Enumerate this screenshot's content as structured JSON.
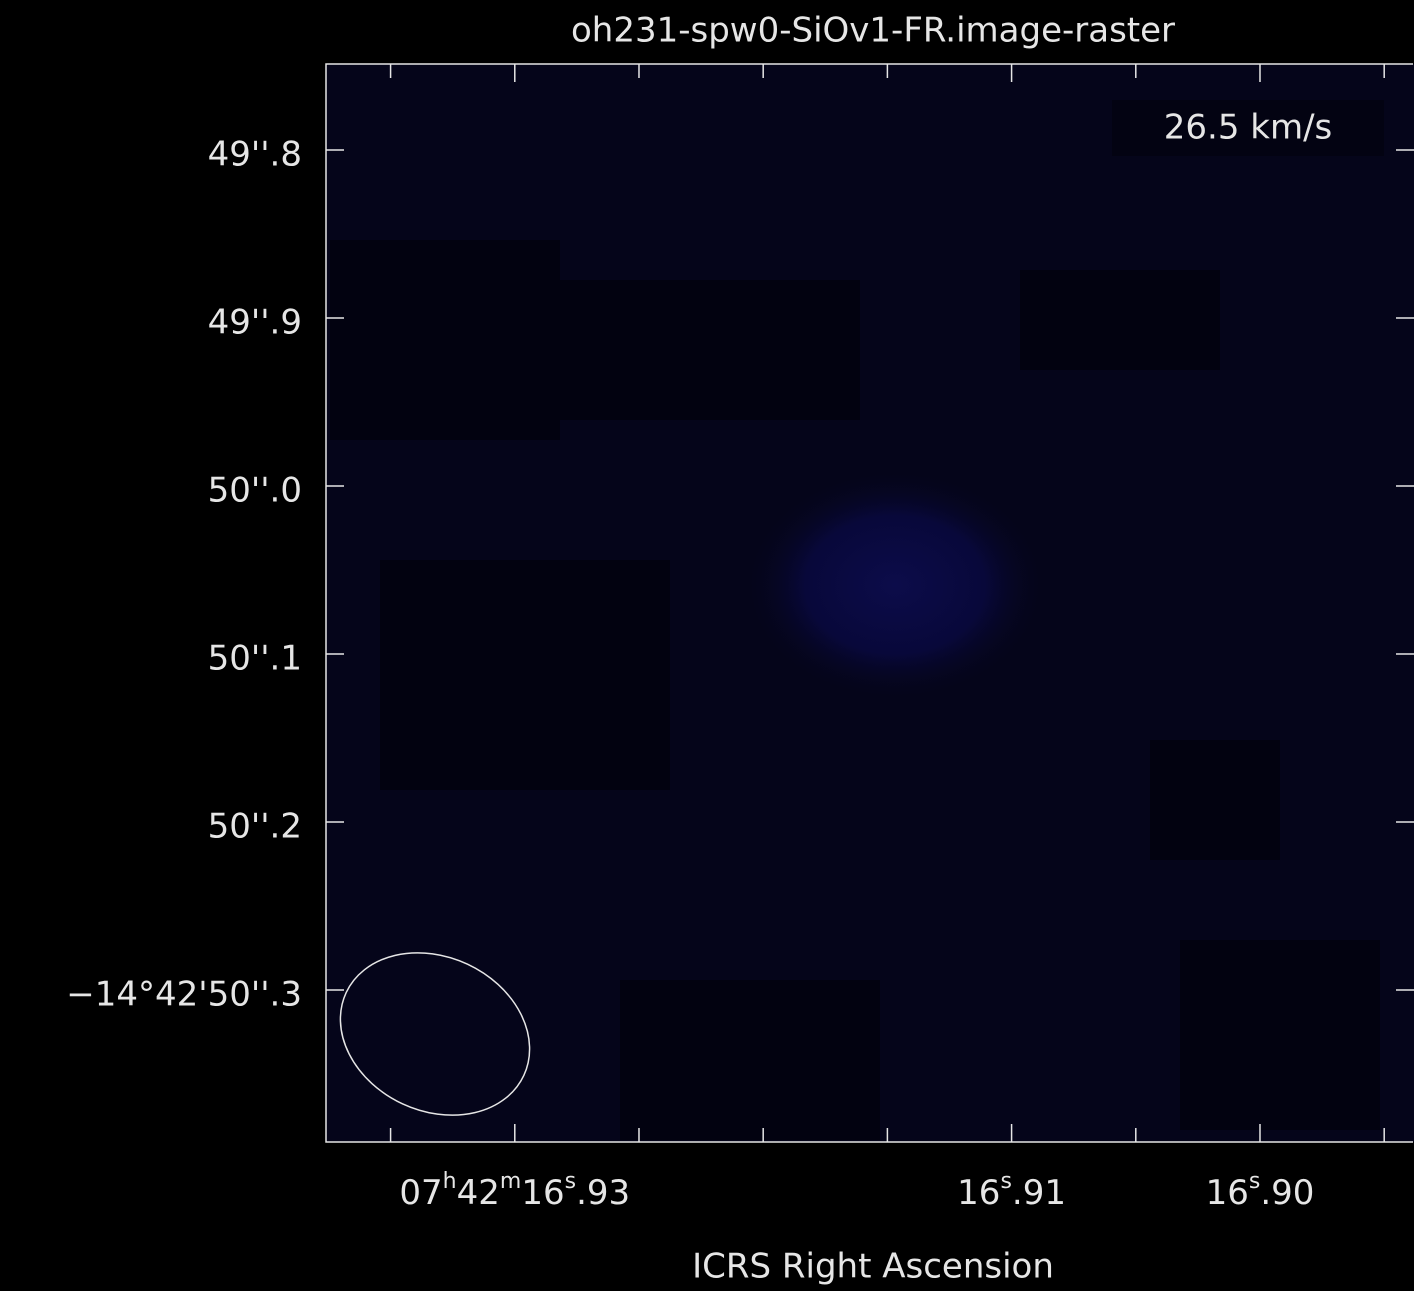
{
  "chart_data": {
    "type": "image",
    "title": "oh231-spw0-SiOv1-FR.image-raster",
    "annotation": "26.5 km/s",
    "xlabel": "ICRS Right Ascension",
    "xlim": [
      16.9376,
      16.8938
    ],
    "xticks": [
      {
        "value": 16.93,
        "label": "07h42m16s.93"
      },
      {
        "value": 16.91,
        "label": "16s.91"
      },
      {
        "value": 16.9,
        "label": "16s.90"
      }
    ],
    "xminorticks": [
      16.935,
      16.925,
      16.92,
      16.915,
      16.905,
      16.895
    ],
    "ylim": [
      49.7488,
      50.3905
    ],
    "yticks": [
      {
        "value": 49.8,
        "label": "49''.8"
      },
      {
        "value": 49.9,
        "label": "49''.9"
      },
      {
        "value": 50.0,
        "label": "50''.0"
      },
      {
        "value": 50.1,
        "label": "50''.1"
      },
      {
        "value": 50.2,
        "label": "50''.2"
      },
      {
        "value": 50.3,
        "label": "−14°42'50''.3"
      }
    ]
  }
}
